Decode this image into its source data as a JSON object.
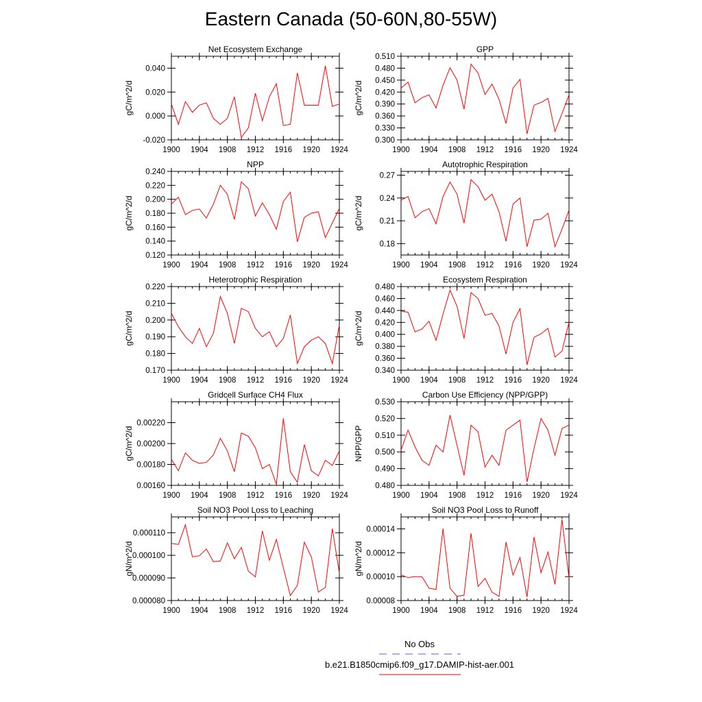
{
  "title": "Eastern Canada (50-60N,80-55W)",
  "x": [
    1900,
    1901,
    1902,
    1903,
    1904,
    1905,
    1906,
    1907,
    1908,
    1909,
    1910,
    1911,
    1912,
    1913,
    1914,
    1915,
    1916,
    1917,
    1918,
    1919,
    1920,
    1921,
    1922,
    1923,
    1924
  ],
  "x_ticks": [
    1900,
    1904,
    1908,
    1912,
    1916,
    1920,
    1924
  ],
  "line_color": "#ff0000",
  "obs_color": "#5a5aff",
  "legend": {
    "obs_label": "No Obs",
    "model_label": "b.e21.B1850cmip6.f09_g17.DAMIP-hist-aer.001"
  },
  "chart_data": [
    {
      "type": "line",
      "title": "Net Ecosystem Exchange",
      "ylabel": "gC/m^2/d",
      "ylim": [
        -0.02,
        0.05
      ],
      "yticks": [
        "0.040",
        "0.020",
        "0.000",
        "-0.020"
      ],
      "ytick_values": [
        0.04,
        0.02,
        0.0,
        -0.02
      ],
      "series": [
        {
          "values": [
            0.01,
            -0.007,
            0.012,
            0.003,
            0.009,
            0.011,
            -0.002,
            -0.007,
            -0.002,
            0.016,
            -0.018,
            -0.01,
            0.019,
            -0.004,
            0.016,
            0.027,
            -0.008,
            -0.007,
            0.036,
            0.009,
            0.009,
            0.009,
            0.042,
            0.008,
            0.01
          ]
        }
      ]
    },
    {
      "type": "line",
      "title": "GPP",
      "ylabel": "gC/m^2/d",
      "ylim": [
        0.3,
        0.51
      ],
      "yticks": [
        "0.510",
        "0.480",
        "0.450",
        "0.420",
        "0.390",
        "0.360",
        "0.330",
        "0.300"
      ],
      "ytick_values": [
        0.51,
        0.48,
        0.45,
        0.42,
        0.39,
        0.36,
        0.33,
        0.3
      ],
      "series": [
        {
          "values": [
            0.43,
            0.445,
            0.393,
            0.406,
            0.413,
            0.38,
            0.437,
            0.481,
            0.45,
            0.377,
            0.49,
            0.468,
            0.414,
            0.44,
            0.402,
            0.341,
            0.43,
            0.452,
            0.315,
            0.387,
            0.394,
            0.404,
            0.321,
            0.366,
            0.413
          ]
        }
      ]
    },
    {
      "type": "line",
      "title": "NPP",
      "ylabel": "gC/m^2/d",
      "ylim": [
        0.12,
        0.24
      ],
      "yticks": [
        "0.240",
        "0.220",
        "0.200",
        "0.180",
        "0.160",
        "0.140",
        "0.120"
      ],
      "ytick_values": [
        0.24,
        0.22,
        0.2,
        0.18,
        0.16,
        0.14,
        0.12
      ],
      "series": [
        {
          "values": [
            0.193,
            0.203,
            0.178,
            0.184,
            0.186,
            0.173,
            0.193,
            0.22,
            0.207,
            0.171,
            0.225,
            0.215,
            0.176,
            0.195,
            0.178,
            0.157,
            0.197,
            0.21,
            0.139,
            0.174,
            0.18,
            0.182,
            0.145,
            0.166,
            0.187
          ]
        }
      ]
    },
    {
      "type": "line",
      "title": "Autotrophic Respiration",
      "ylabel": "gC/m^2/d",
      "ylim": [
        0.165,
        0.275
      ],
      "yticks": [
        "0.27",
        "0.24",
        "0.21",
        "0.18"
      ],
      "ytick_values": [
        0.27,
        0.24,
        0.21,
        0.18
      ],
      "series": [
        {
          "values": [
            0.237,
            0.242,
            0.214,
            0.222,
            0.226,
            0.206,
            0.242,
            0.261,
            0.245,
            0.207,
            0.264,
            0.255,
            0.237,
            0.245,
            0.222,
            0.183,
            0.232,
            0.24,
            0.176,
            0.211,
            0.212,
            0.22,
            0.176,
            0.199,
            0.224
          ]
        }
      ]
    },
    {
      "type": "line",
      "title": "Heterotrophic Respiration",
      "ylabel": "gC/m^2/d",
      "ylim": [
        0.17,
        0.22
      ],
      "yticks": [
        "0.220",
        "0.210",
        "0.200",
        "0.190",
        "0.180",
        "0.170"
      ],
      "ytick_values": [
        0.22,
        0.21,
        0.2,
        0.19,
        0.18,
        0.17
      ],
      "series": [
        {
          "values": [
            0.204,
            0.196,
            0.19,
            0.186,
            0.195,
            0.184,
            0.192,
            0.214,
            0.204,
            0.186,
            0.207,
            0.205,
            0.195,
            0.19,
            0.193,
            0.184,
            0.189,
            0.203,
            0.174,
            0.184,
            0.188,
            0.19,
            0.186,
            0.174,
            0.197
          ]
        }
      ]
    },
    {
      "type": "line",
      "title": "Ecosystem Respiration",
      "ylabel": "gC/m^2/d",
      "ylim": [
        0.34,
        0.48
      ],
      "yticks": [
        "0.480",
        "0.460",
        "0.440",
        "0.420",
        "0.400",
        "0.380",
        "0.360",
        "0.340"
      ],
      "ytick_values": [
        0.48,
        0.46,
        0.44,
        0.42,
        0.4,
        0.38,
        0.36,
        0.34
      ],
      "series": [
        {
          "values": [
            0.439,
            0.437,
            0.404,
            0.409,
            0.422,
            0.39,
            0.434,
            0.474,
            0.447,
            0.393,
            0.47,
            0.46,
            0.432,
            0.435,
            0.414,
            0.367,
            0.42,
            0.443,
            0.349,
            0.395,
            0.401,
            0.41,
            0.362,
            0.372,
            0.42
          ]
        }
      ]
    },
    {
      "type": "line",
      "title": "Gridcell Surface CH4 Flux",
      "ylabel": "gC/m^2/d",
      "ylim": [
        0.0016,
        0.0024
      ],
      "yticks": [
        "0.00220",
        "0.00200",
        "0.00180",
        "0.00160"
      ],
      "ytick_values": [
        0.0022,
        0.002,
        0.0018,
        0.0016
      ],
      "series": [
        {
          "values": [
            0.00185,
            0.00174,
            0.00191,
            0.00184,
            0.00181,
            0.00182,
            0.00189,
            0.00205,
            0.00193,
            0.00173,
            0.0021,
            0.00207,
            0.00196,
            0.00176,
            0.0018,
            0.00161,
            0.00224,
            0.00173,
            0.00163,
            0.00199,
            0.00174,
            0.00169,
            0.00184,
            0.00179,
            0.00193
          ]
        }
      ]
    },
    {
      "type": "line",
      "title": "Carbon Use Efficiency (NPP/GPP)",
      "ylabel": "NPP/GPP",
      "ylim": [
        0.48,
        0.53
      ],
      "yticks": [
        "0.530",
        "0.520",
        "0.510",
        "0.500",
        "0.490",
        "0.480"
      ],
      "ytick_values": [
        0.53,
        0.52,
        0.51,
        0.5,
        0.49,
        0.48
      ],
      "series": [
        {
          "values": [
            0.501,
            0.513,
            0.503,
            0.495,
            0.492,
            0.504,
            0.5,
            0.522,
            0.504,
            0.486,
            0.516,
            0.512,
            0.491,
            0.498,
            0.492,
            0.513,
            0.516,
            0.519,
            0.482,
            0.502,
            0.52,
            0.513,
            0.498,
            0.514,
            0.516
          ]
        }
      ]
    },
    {
      "type": "line",
      "title": "Soil NO3 Pool Loss to Leaching",
      "ylabel": "gN/m^2/d",
      "ylim": [
        8e-05,
        0.000117
      ],
      "yticks": [
        "0.000110",
        "0.000100",
        "0.000090",
        "0.000080"
      ],
      "ytick_values": [
        0.00011,
        0.0001,
        9e-05,
        8e-05
      ],
      "series": [
        {
          "values": [
            0.0001053,
            0.0001048,
            0.0001135,
            9.93e-05,
            9.98e-05,
            0.0001028,
            9.72e-05,
            9.75e-05,
            0.0001055,
            9.85e-05,
            0.0001035,
            9.3e-05,
            9.05e-05,
            0.0001108,
            9.78e-05,
            0.000107,
            9.45e-05,
            8.22e-05,
            8.67e-05,
            0.0001058,
            9.93e-05,
            8.37e-05,
            8.58e-05,
            0.0001118,
            9.22e-05
          ]
        }
      ]
    },
    {
      "type": "line",
      "title": "Soil NO3 Pool Loss to Runoff",
      "ylabel": "gN/m^2/d",
      "ylim": [
        8e-05,
        0.00015
      ],
      "yticks": [
        "0.00014",
        "0.00012",
        "0.00010",
        "0.00008"
      ],
      "ytick_values": [
        0.00014,
        0.00012,
        0.0001,
        8e-05
      ],
      "series": [
        {
          "values": [
            0.0001015,
            9.92e-05,
            0.0001,
            9.98e-05,
            9.03e-05,
            8.93e-05,
            0.0001402,
            9.03e-05,
            8.35e-05,
            8.45e-05,
            0.0001363,
            9.17e-05,
            9.85e-05,
            8.7e-05,
            8.35e-05,
            0.000129,
            0.0001013,
            0.000116,
            8.3e-05,
            0.0001332,
            0.0001033,
            0.0001205,
            9.35e-05,
            0.0001478,
            9.9e-05
          ]
        }
      ]
    }
  ]
}
